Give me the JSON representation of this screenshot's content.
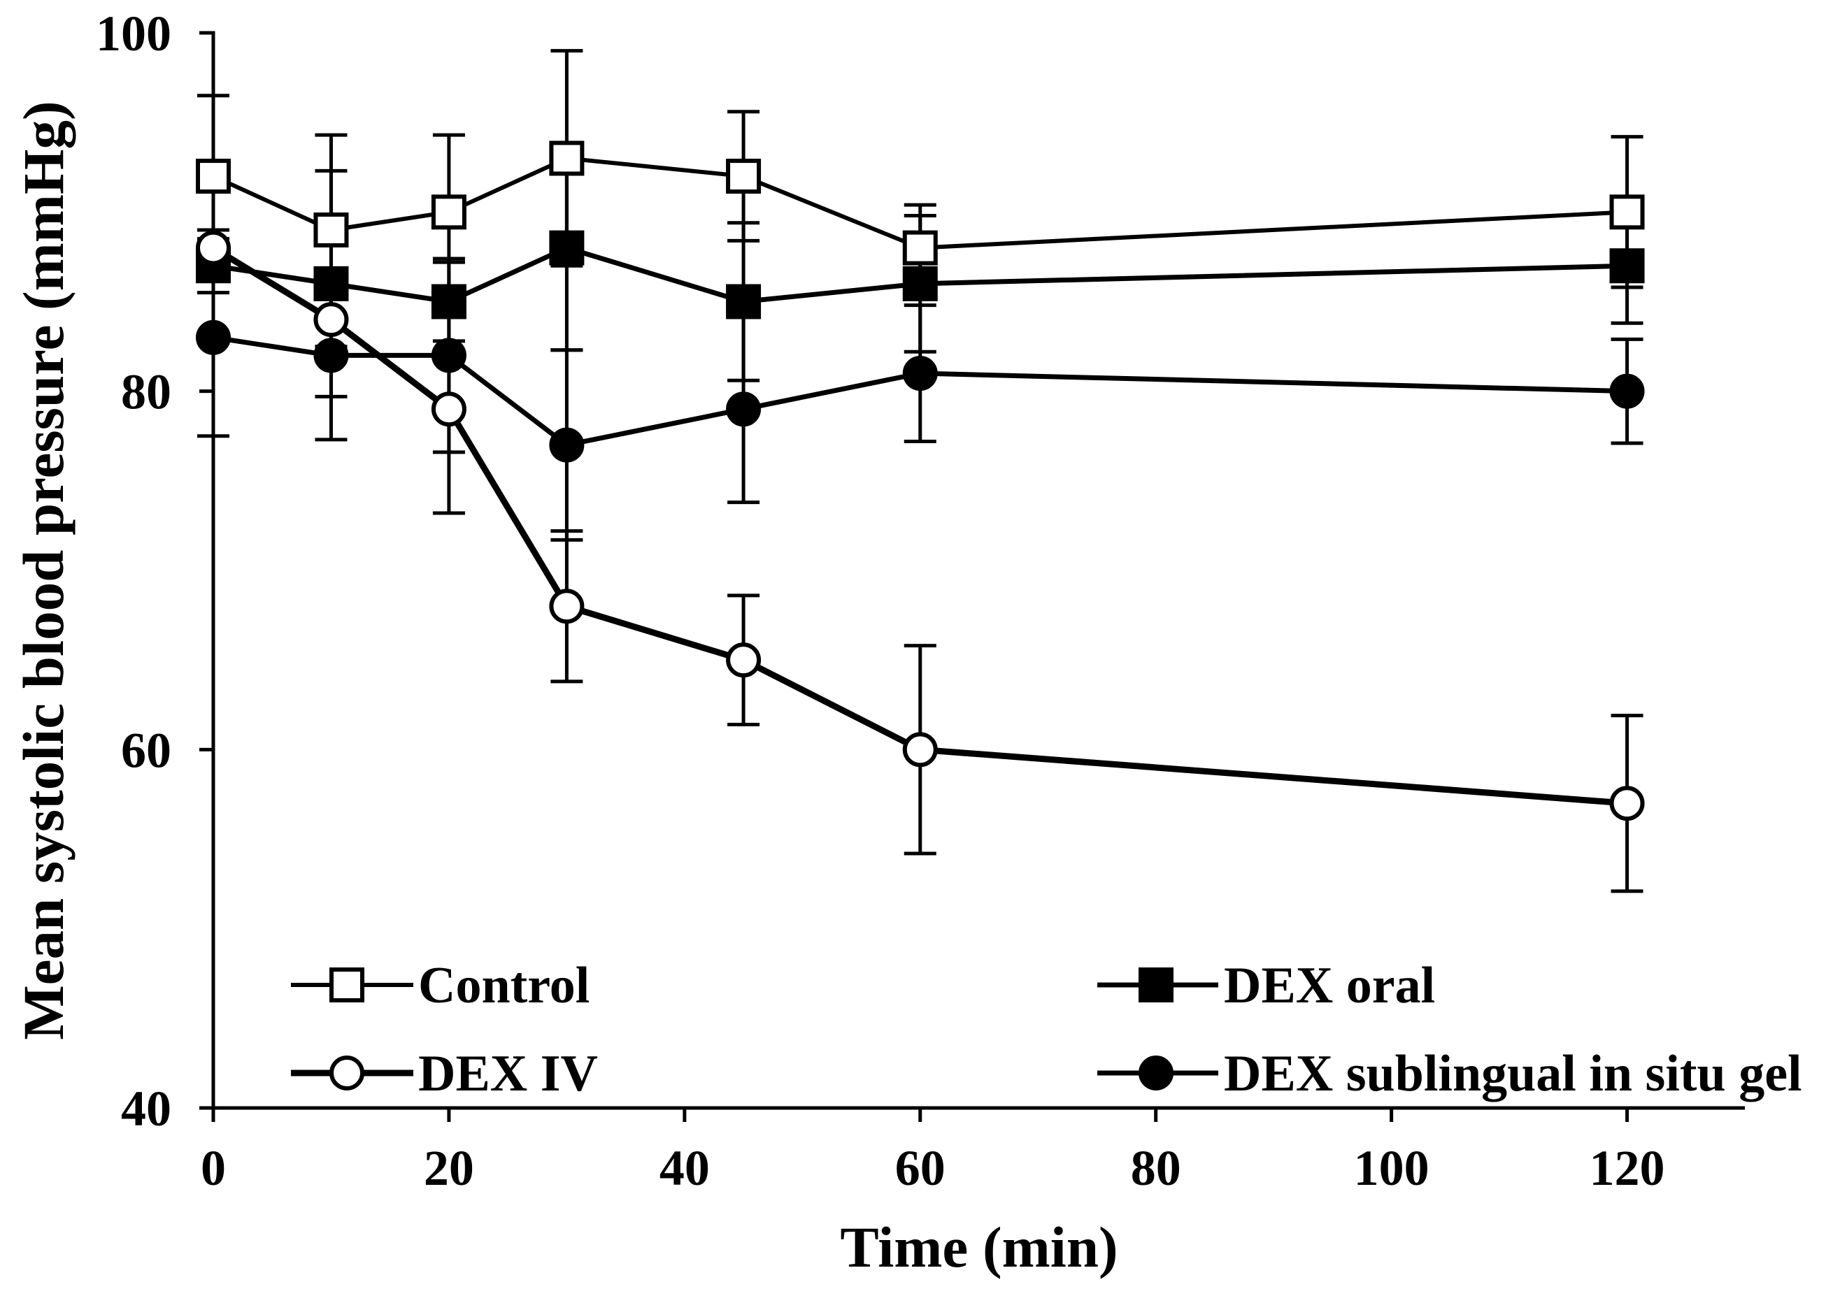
{
  "chart_data": {
    "type": "line",
    "xlabel": "Time (min)",
    "ylabel": "Mean systolic blood pressure (mmHg)",
    "xlim": [
      0,
      130
    ],
    "ylim": [
      40,
      100
    ],
    "xticks": [
      0,
      20,
      40,
      60,
      80,
      100,
      120
    ],
    "yticks": [
      40,
      60,
      80,
      100
    ],
    "grid": false,
    "legend": "bottom",
    "x": [
      0,
      10,
      20,
      30,
      45,
      60,
      120
    ],
    "series": [
      {
        "name": "Control",
        "color": "#000000",
        "marker_fill": "#ffffff",
        "values": [
          92,
          89,
          90,
          93,
          92,
          88,
          90
        ],
        "errors": [
          4.5,
          5.3,
          4.3,
          6.0,
          3.6,
          2.4,
          4.2
        ]
      },
      {
        "name": "DEX oral",
        "color": "#000000",
        "marker_fill": "#000000",
        "values": [
          87,
          86,
          85,
          88,
          85,
          86,
          87
        ],
        "errors": [
          1.5,
          6.3,
          2.2,
          5.7,
          4.4,
          3.8,
          3.2
        ]
      },
      {
        "name": "DEX IV",
        "color": "#000000",
        "marker_fill": "#ffffff",
        "values": [
          88,
          84,
          79,
          68,
          65,
          60,
          57
        ],
        "errors": [
          1.0,
          1.5,
          5.8,
          4.2,
          3.6,
          5.8,
          4.9
        ]
      },
      {
        "name": "DEX sublingual in situ gel",
        "color": "#000000",
        "marker_fill": "#000000",
        "values": [
          83,
          82,
          82,
          77,
          79,
          81,
          80
        ],
        "errors": [
          5.5,
          4.7,
          5.4,
          5.3,
          5.2,
          3.8,
          2.9
        ]
      }
    ]
  }
}
